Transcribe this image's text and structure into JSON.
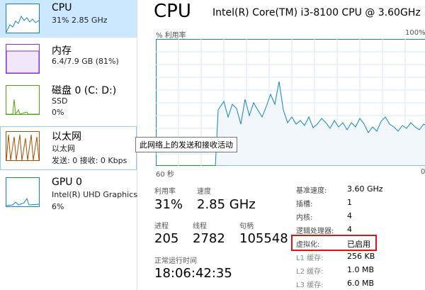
{
  "sidebar": {
    "items": [
      {
        "title": "CPU",
        "detail": "31% 2.85 GHz"
      },
      {
        "title": "内存",
        "detail": "6.4/7.9 GB (81%)"
      },
      {
        "title": "磁盘 0 (C: D:)",
        "detail": "SSD",
        "detail2": "0%"
      },
      {
        "title": "以太网",
        "detail": "以太网",
        "detail2": "发送: 0 接收: 0 Kbps"
      },
      {
        "title": "GPU 0",
        "detail": "Intel(R) UHD Graphics",
        "detail2": "6%"
      }
    ]
  },
  "header": {
    "title": "CPU",
    "processor": "Intel(R) Core(TM) i3-8100 CPU @ 3.60GHz"
  },
  "graph": {
    "y_label": "% 利用率",
    "y_max_label": "100%",
    "x_left_label": "60 秒",
    "x_right_label": "0"
  },
  "tooltip": "此网络上的发送和接收活动",
  "stats": [
    {
      "label": "利用率",
      "value": "31%"
    },
    {
      "label": "速度",
      "value": "2.85 GHz"
    },
    {
      "label": "进程",
      "value": "205"
    },
    {
      "label": "线程",
      "value": "2782"
    },
    {
      "label": "句柄",
      "value": "105548"
    }
  ],
  "uptime": {
    "label": "正常运行时间",
    "value": "18:06:42:35"
  },
  "specs": [
    {
      "label": "基准速度:",
      "value": "3.60 GHz"
    },
    {
      "label": "插槽:",
      "value": "1"
    },
    {
      "label": "内核:",
      "value": "4"
    },
    {
      "label": "逻辑处理器:",
      "value": "4"
    },
    {
      "label": "虚拟化:",
      "value": "已启用"
    },
    {
      "label": "L1 缓存:",
      "value": "256 KB"
    },
    {
      "label": "L2 缓存:",
      "value": "1.0 MB"
    },
    {
      "label": "L3 缓存:",
      "value": "6.0 MB"
    }
  ]
}
